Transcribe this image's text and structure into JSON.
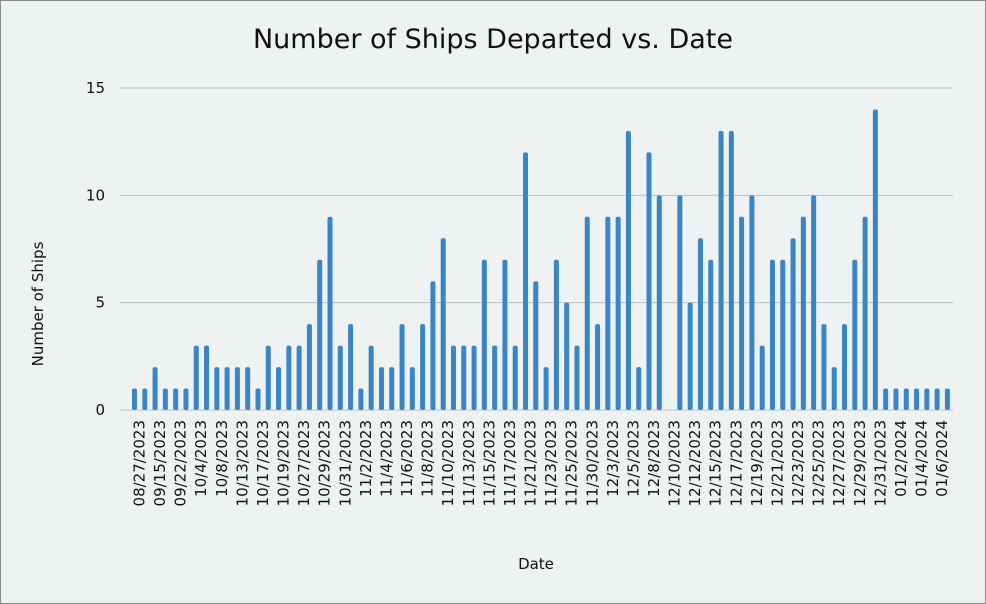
{
  "chart_data": {
    "type": "bar",
    "title": "Number of Ships Departed vs. Date",
    "xlabel": "Date",
    "ylabel": "Number of Ships",
    "ylim": [
      0,
      15
    ],
    "yticks": [
      0,
      5,
      10,
      15
    ],
    "grid": true,
    "bar_color": "#3a85c5",
    "grid_color": "#b9c1c5",
    "background": "#eef2f3",
    "categories": [
      "08/27/2023",
      "",
      "09/15/2023",
      "",
      "09/22/2023",
      "",
      "10/4/2023",
      "",
      "10/8/2023",
      "",
      "10/13/2023",
      "",
      "10/17/2023",
      "",
      "10/19/2023",
      "",
      "10/27/2023",
      "",
      "10/29/2023",
      "",
      "10/31/2023",
      "",
      "11/2/2023",
      "",
      "11/4/2023",
      "",
      "11/6/2023",
      "",
      "11/8/2023",
      "",
      "11/10/2023",
      "",
      "11/13/2023",
      "",
      "11/15/2023",
      "",
      "11/17/2023",
      "",
      "11/21/2023",
      "",
      "11/23/2023",
      "",
      "11/25/2023",
      "",
      "11/30/2023",
      "",
      "12/3/2023",
      "",
      "12/5/2023",
      "",
      "12/8/2023",
      "",
      "12/10/2023",
      "",
      "12/12/2023",
      "",
      "12/15/2023",
      "",
      "12/17/2023",
      "",
      "12/19/2023",
      "",
      "12/21/2023",
      "",
      "12/23/2023",
      "",
      "12/25/2023",
      "",
      "12/27/2023",
      "",
      "12/29/2023",
      "",
      "12/31/2023",
      "",
      "01/2/2024",
      "",
      "01/4/2024",
      "",
      "01/6/2024",
      ""
    ],
    "values": [
      1,
      1,
      2,
      1,
      1,
      1,
      3,
      3,
      2,
      2,
      2,
      2,
      1,
      3,
      2,
      3,
      3,
      4,
      7,
      9,
      3,
      4,
      1,
      3,
      2,
      2,
      4,
      2,
      4,
      6,
      8,
      3,
      3,
      3,
      7,
      3,
      7,
      3,
      12,
      6,
      2,
      7,
      5,
      3,
      9,
      4,
      9,
      9,
      13,
      2,
      12,
      10,
      0,
      10,
      5,
      8,
      7,
      13,
      13,
      9,
      10,
      3,
      7,
      7,
      8,
      9,
      10,
      4,
      2,
      4,
      7,
      9,
      14,
      1,
      1,
      1,
      1,
      1,
      1,
      1
    ]
  }
}
